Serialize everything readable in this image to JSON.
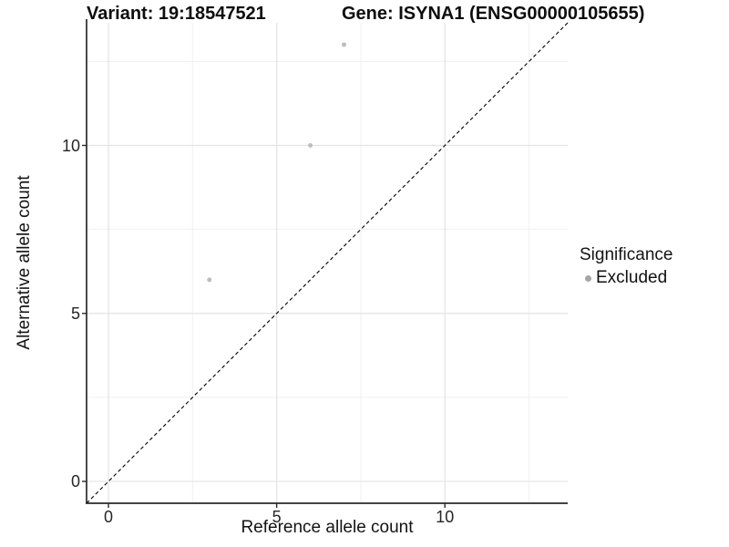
{
  "title": {
    "variant": "Variant: 19:18547521",
    "gene": "Gene: ISYNA1 (ENSG00000105655)"
  },
  "axes": {
    "x_label": "Reference allele count",
    "y_label": "Alternative allele count"
  },
  "legend": {
    "title": "Significance",
    "items": [
      {
        "label": "Excluded",
        "color": "#a6a6a6"
      }
    ]
  },
  "chart_data": {
    "type": "scatter",
    "title": "Variant: 19:18547521   Gene: ISYNA1 (ENSG00000105655)",
    "xlabel": "Reference allele count",
    "ylabel": "Alternative allele count",
    "xlim": [
      -0.65,
      13.65
    ],
    "ylim": [
      -0.65,
      13.65
    ],
    "x_ticks": [
      0,
      5,
      10
    ],
    "y_ticks": [
      0,
      5,
      10
    ],
    "x_minor_ticks": [
      2.5,
      7.5,
      12.5
    ],
    "y_minor_ticks": [
      2.5,
      7.5,
      12.5
    ],
    "grid": true,
    "legend_position": "right",
    "series": [
      {
        "name": "Excluded",
        "color": "#bebebe",
        "marker_size": 5,
        "points": [
          [
            3,
            6
          ],
          [
            6,
            10
          ],
          [
            7,
            13
          ]
        ]
      }
    ],
    "reference_line": {
      "description": "y = x identity line",
      "style": "dashed",
      "color": "#000000",
      "from": [
        -0.65,
        -0.65
      ],
      "to": [
        13.65,
        13.65
      ]
    }
  }
}
